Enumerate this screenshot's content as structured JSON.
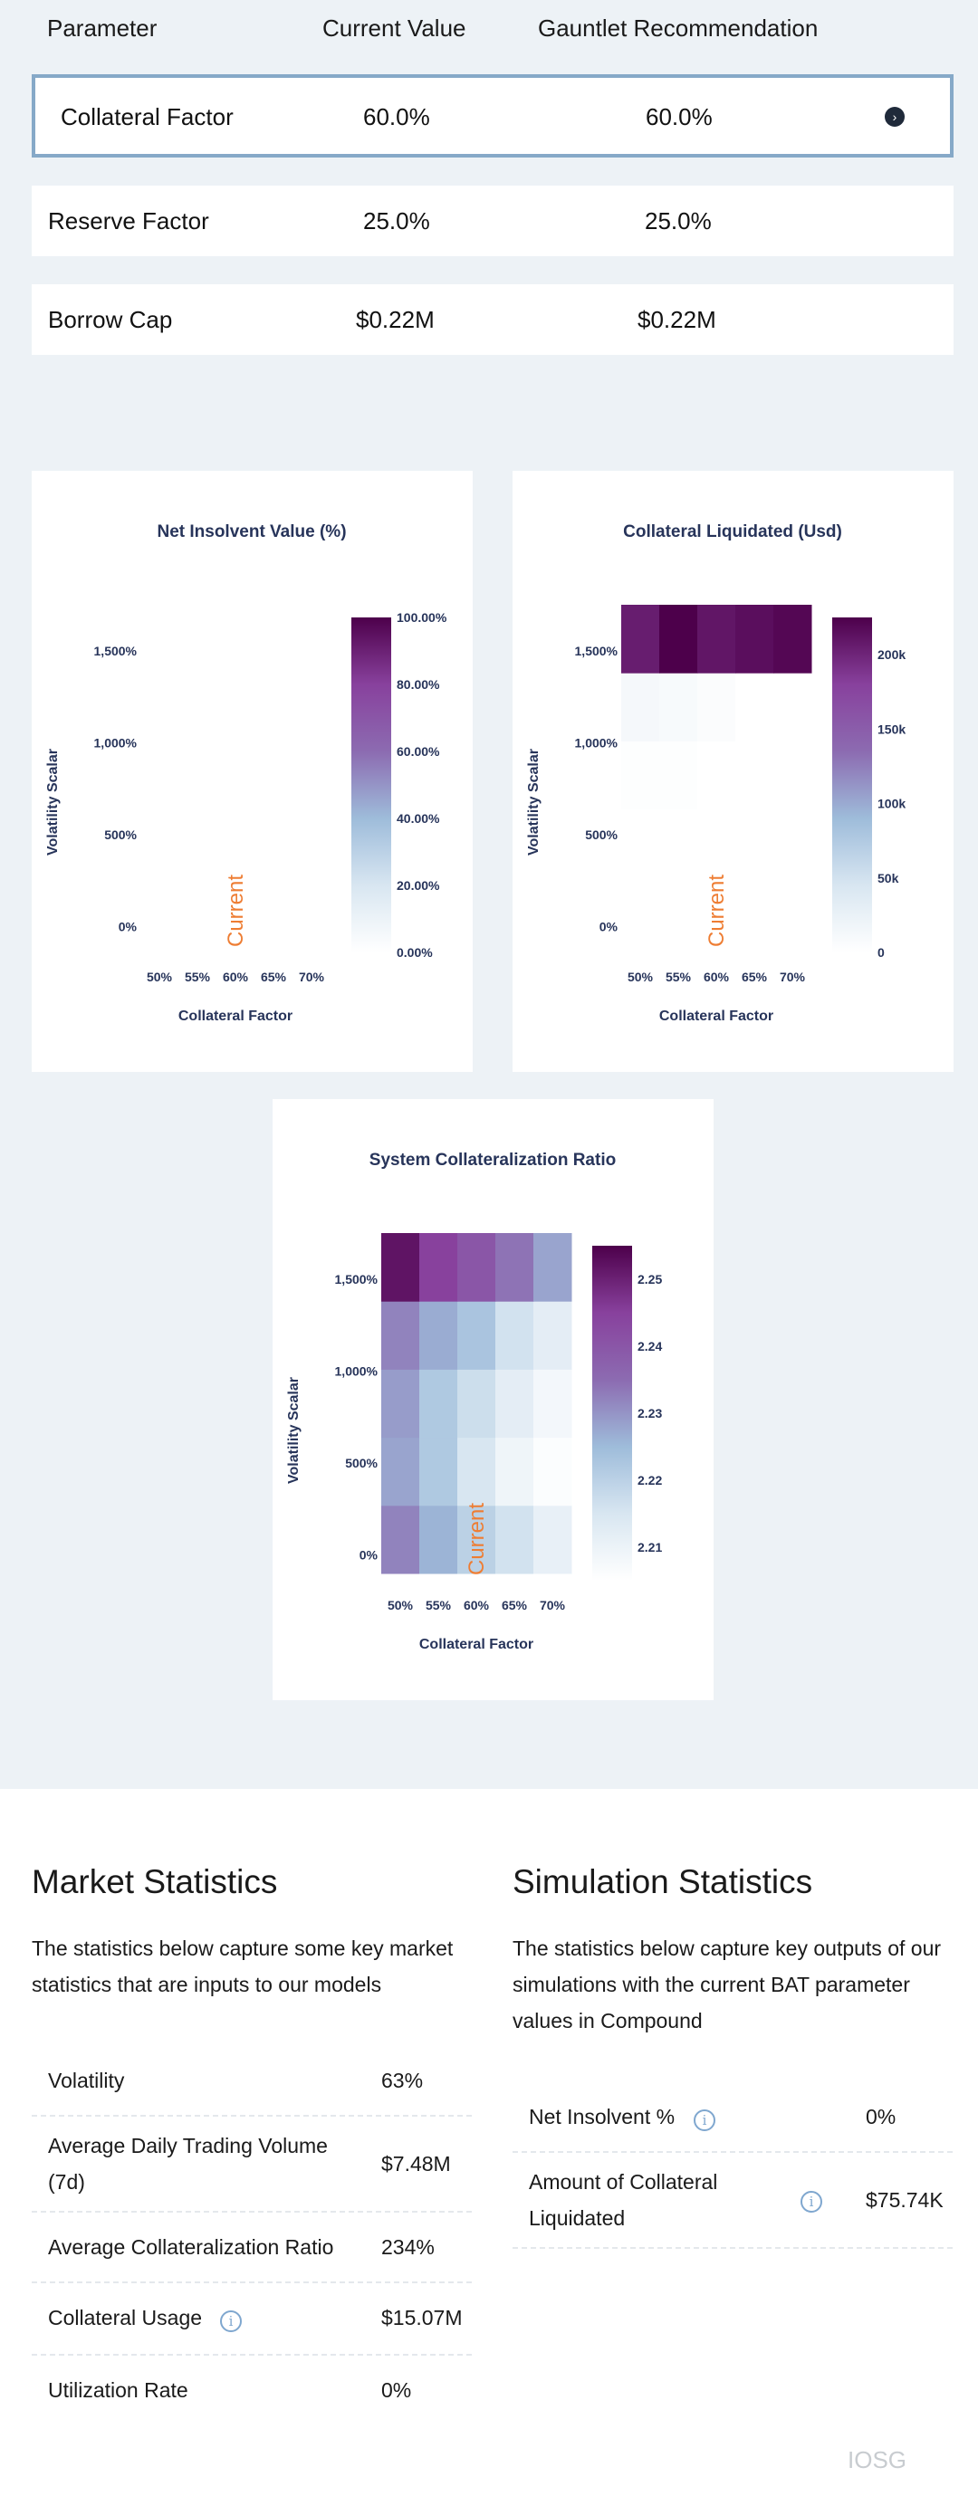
{
  "params": {
    "headers": [
      "Parameter",
      "Current Value",
      "Gauntlet Recommendation"
    ],
    "rows": [
      {
        "name": "Collateral Factor",
        "current": "60.0%",
        "recommendation": "60.0%"
      },
      {
        "name": "Reserve Factor",
        "current": "25.0%",
        "recommendation": "25.0%"
      },
      {
        "name": "Borrow Cap",
        "current": "$0.22M",
        "recommendation": "$0.22M"
      }
    ]
  },
  "chart_data": [
    {
      "type": "heatmap",
      "title": "Net Insolvent Value (%)",
      "xlabel": "Collateral Factor",
      "ylabel": "Volatility Scalar",
      "x": [
        "50%",
        "55%",
        "60%",
        "65%",
        "70%"
      ],
      "y_ticks": [
        "0%",
        "500%",
        "1,000%",
        "1,500%"
      ],
      "annotation": "Current",
      "colorbar_ticks": [
        "0.00%",
        "20.00%",
        "40.00%",
        "60.00%",
        "80.00%",
        "100.00%"
      ],
      "colorbar_range": [
        0,
        100
      ],
      "z": [
        [
          0,
          0,
          0,
          0,
          0
        ],
        [
          0,
          0,
          0,
          0,
          0
        ],
        [
          0,
          0,
          0,
          0,
          0
        ],
        [
          0,
          0,
          0,
          0,
          0
        ],
        [
          0,
          0,
          0,
          0,
          0
        ]
      ]
    },
    {
      "type": "heatmap",
      "title": "Collateral Liquidated (Usd)",
      "xlabel": "Collateral Factor",
      "ylabel": "Volatility Scalar",
      "x": [
        "50%",
        "55%",
        "60%",
        "65%",
        "70%"
      ],
      "y_ticks": [
        "0%",
        "500%",
        "1,000%",
        "1,500%"
      ],
      "annotation": "Current",
      "colorbar_ticks": [
        "0",
        "50k",
        "100k",
        "150k",
        "200k"
      ],
      "colorbar_range": [
        0,
        225000
      ],
      "z": [
        [
          0,
          0,
          0,
          0,
          0
        ],
        [
          0,
          0,
          0,
          0,
          0
        ],
        [
          2000,
          2000,
          0,
          0,
          0
        ],
        [
          12000,
          9000,
          5000,
          0,
          0
        ],
        [
          205000,
          225000,
          210000,
          215000,
          220000
        ]
      ]
    },
    {
      "type": "heatmap",
      "title": "System Collateralization Ratio",
      "xlabel": "Collateral Factor",
      "ylabel": "Volatility Scalar",
      "x": [
        "50%",
        "55%",
        "60%",
        "65%",
        "70%"
      ],
      "y_ticks": [
        "0%",
        "500%",
        "1,000%",
        "1,500%"
      ],
      "annotation": "Current",
      "colorbar_ticks": [
        "2.21",
        "2.22",
        "2.23",
        "2.24",
        "2.25"
      ],
      "colorbar_range": [
        2.205,
        2.255
      ],
      "z": [
        [
          2.232,
          2.226,
          2.22,
          2.216,
          2.211
        ],
        [
          2.228,
          2.222,
          2.215,
          2.209,
          2.206
        ],
        [
          2.229,
          2.222,
          2.217,
          2.212,
          2.208
        ],
        [
          2.232,
          2.227,
          2.223,
          2.216,
          2.212
        ],
        [
          2.252,
          2.245,
          2.24,
          2.234,
          2.228
        ]
      ]
    }
  ],
  "market": {
    "title": "Market Statistics",
    "description": "The statistics below capture some key market statistics that are inputs to our models",
    "rows": [
      {
        "label": "Volatility",
        "value": "63%"
      },
      {
        "label": "Average Daily Trading Volume (7d)",
        "value": "$7.48M"
      },
      {
        "label": "Average Collateralization Ratio",
        "value": "234%"
      },
      {
        "label": "Collateral Usage",
        "value": "$15.07M"
      },
      {
        "label": "Utilization Rate",
        "value": "0%"
      }
    ]
  },
  "simulation": {
    "title": "Simulation Statistics",
    "description": "The statistics below capture key outputs of our simulations with the current BAT parameter values in Compound",
    "rows": [
      {
        "label": "Net Insolvent %",
        "value": "0%"
      },
      {
        "label": "Amount of Collateral Liquidated",
        "value": "$75.74K"
      }
    ]
  },
  "watermark": "IOSG",
  "colors": {
    "scale": [
      "#ffffff",
      "#d8e6f1",
      "#9ebcda",
      "#8c6bb1",
      "#88419d",
      "#4d004b"
    ],
    "annotation": "#ee7d33"
  }
}
